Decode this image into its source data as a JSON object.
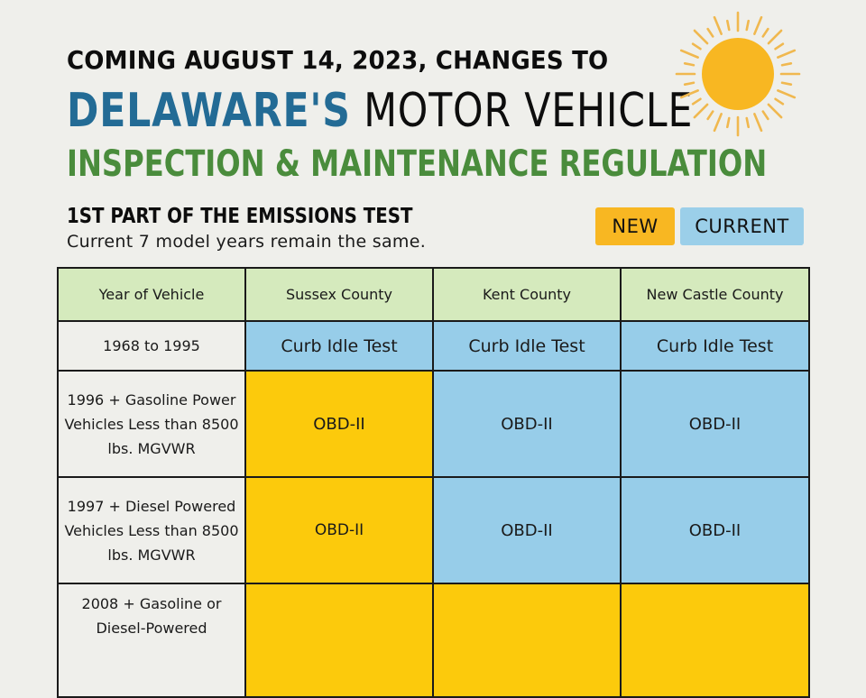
{
  "header": {
    "line1": "COMING AUGUST 14, 2023, CHANGES TO",
    "line2_highlight": "DELAWARE'S",
    "line2_rest": " MOTOR VEHICLE",
    "line3": "INSPECTION & MAINTENANCE REGULATION",
    "decoration_icon": "sun-icon"
  },
  "section": {
    "title": "1ST PART OF THE EMISSIONS TEST",
    "subtitle": "Current 7 model years remain the same."
  },
  "legend": {
    "new_label": "NEW",
    "current_label": "CURRENT",
    "new_color": "#fcca0c",
    "current_color": "#97cde9"
  },
  "colors": {
    "background": "#efefeb",
    "header_row": "#d5eabd",
    "state_blue": "#236b95",
    "regulation_green": "#4a8c3c",
    "sun": "#f8b722"
  },
  "table": {
    "columns": [
      "Year of Vehicle",
      "Sussex County",
      "Kent County",
      "New Castle County"
    ],
    "rows": [
      {
        "year": "1968 to 1995",
        "cells": [
          {
            "value": "Curb Idle Test",
            "status": "current"
          },
          {
            "value": "Curb Idle Test",
            "status": "current"
          },
          {
            "value": "Curb Idle Test",
            "status": "current"
          }
        ]
      },
      {
        "year": "1996 + Gasoline Power Vehicles Less than 8500 lbs. MGVWR",
        "cells": [
          {
            "value": "OBD-II",
            "status": "new"
          },
          {
            "value": "OBD-II",
            "status": "current"
          },
          {
            "value": "OBD-II",
            "status": "current"
          }
        ]
      },
      {
        "year": "1997 + Diesel Powered Vehicles Less than 8500 lbs. MGVWR",
        "cells": [
          {
            "value": "OBD-II",
            "status": "new"
          },
          {
            "value": "OBD-II",
            "status": "current"
          },
          {
            "value": "OBD-II",
            "status": "current"
          }
        ]
      },
      {
        "year": "2008 + Gasoline or Diesel-Powered",
        "cells": [
          {
            "value": "",
            "status": "new"
          },
          {
            "value": "",
            "status": "new"
          },
          {
            "value": "",
            "status": "new"
          }
        ]
      }
    ]
  }
}
